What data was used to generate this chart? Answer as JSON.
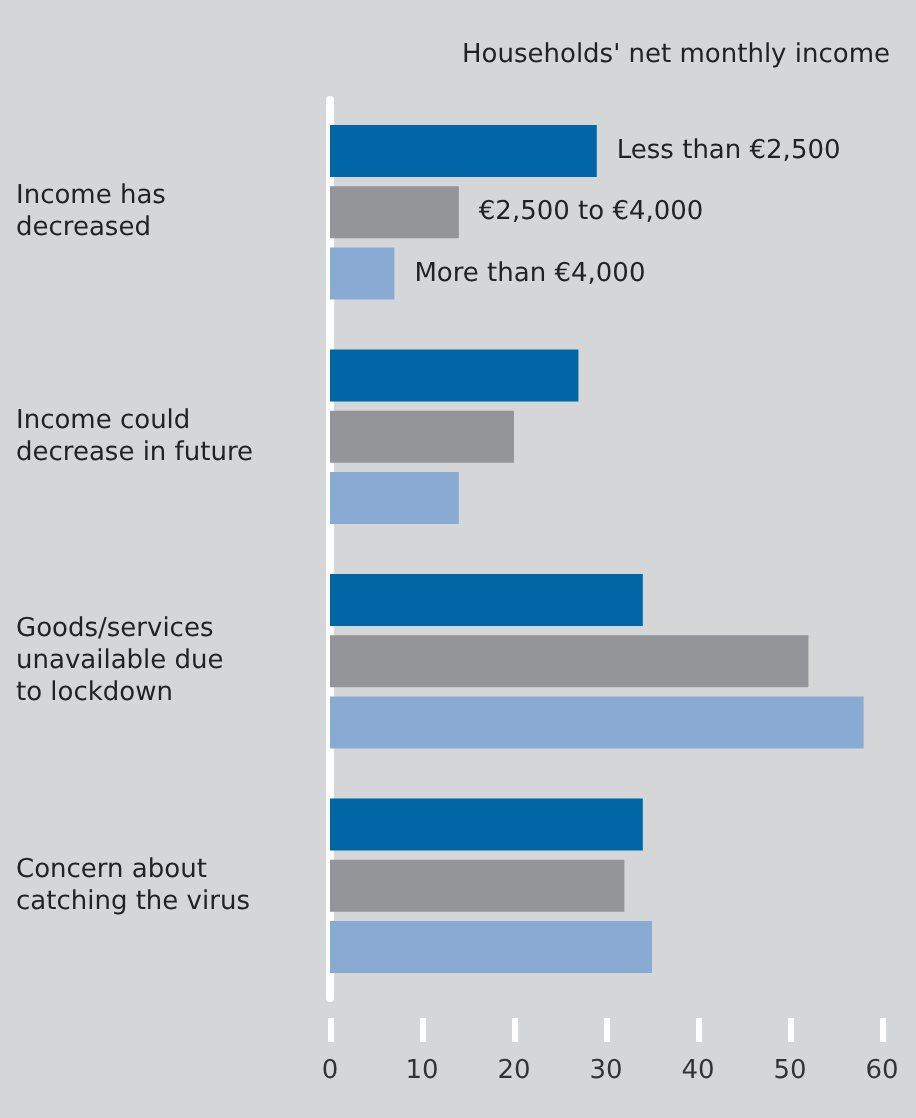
{
  "chart_data": {
    "type": "bar",
    "orientation": "horizontal",
    "legend_title": "Households' net monthly income",
    "categories": [
      "Income has\ndecreased",
      "Income could\ndecrease in future",
      "Goods/services\nunavailable due\nto lockdown",
      "Concern about\ncatching the virus"
    ],
    "series": [
      {
        "name": "Less than €2,500",
        "color": "#0066a6",
        "values": [
          29,
          27,
          34,
          34
        ]
      },
      {
        "name": "€2,500 to €4,000",
        "color": "#939598",
        "values": [
          14,
          20,
          52,
          32
        ]
      },
      {
        "name": "More than €4,000",
        "color": "#88aad3",
        "values": [
          7,
          14,
          58,
          35
        ]
      }
    ],
    "xlim": [
      0,
      60
    ],
    "xticks": [
      0,
      10,
      20,
      30,
      40,
      50,
      60
    ],
    "grid": false,
    "legend": false
  }
}
